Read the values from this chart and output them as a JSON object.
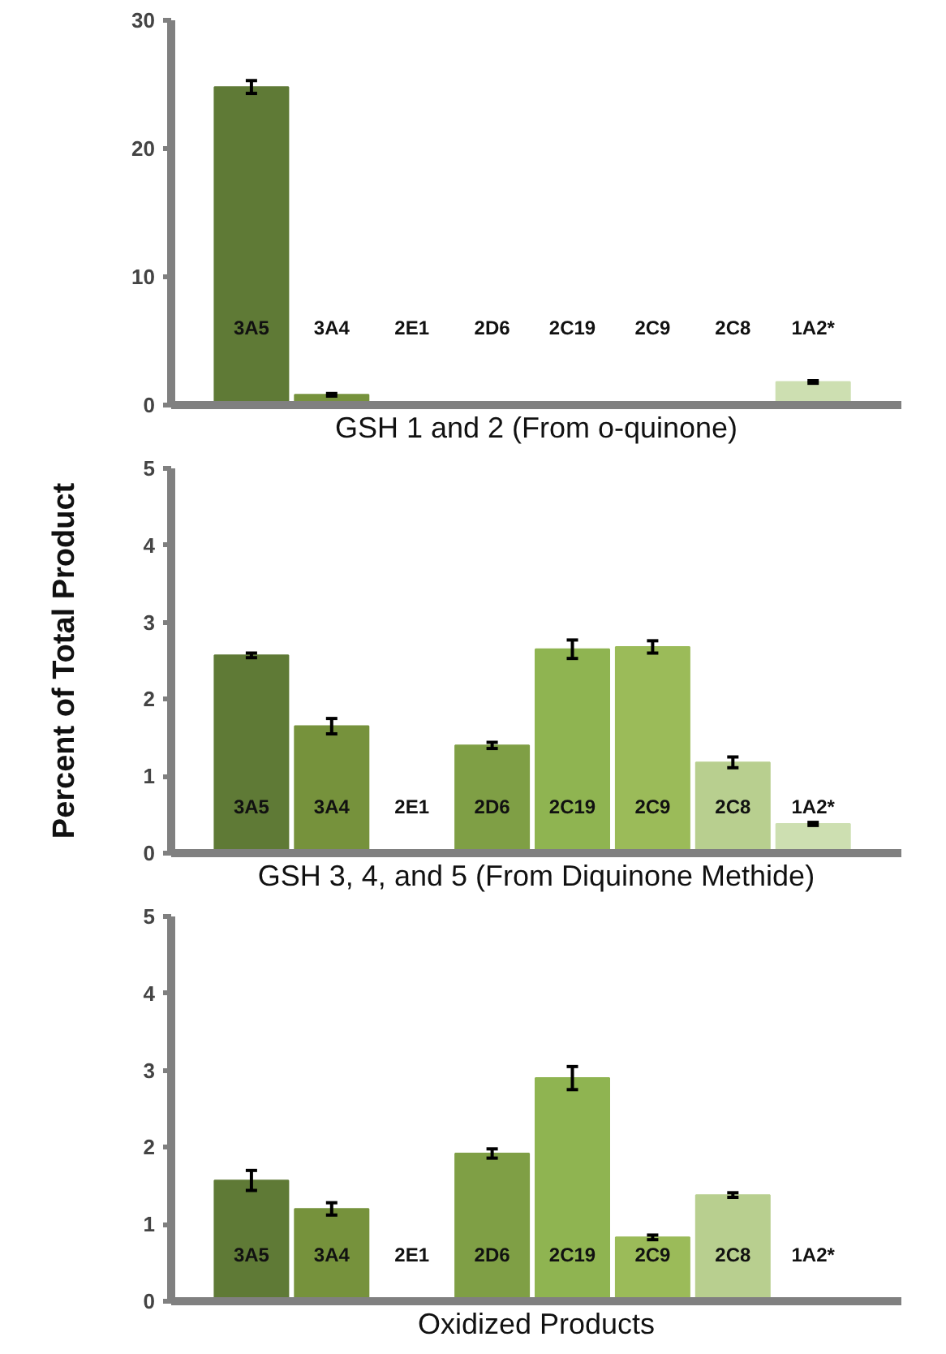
{
  "chart_data": [
    {
      "type": "bar",
      "xlabel": "GSH 1 and 2 (From o-quinone)",
      "categories": [
        "3A5",
        "3A4",
        "2E1",
        "2D6",
        "2C19",
        "2C9",
        "2C8",
        "1A2*"
      ],
      "values": [
        24.8,
        0.8,
        0,
        0.1,
        0,
        0,
        0,
        1.8
      ],
      "errors": [
        0.5,
        0.1,
        null,
        null,
        null,
        null,
        null,
        0.1
      ],
      "colors": [
        "#5f7a36",
        "#76923c",
        "#7a9a40",
        "#7f9f45",
        "#8fb451",
        "#9bbb59",
        "#b8cf8f",
        "#cddfb1"
      ],
      "ylim": [
        0,
        30
      ],
      "yticks": [
        0,
        10,
        20,
        30
      ],
      "grid": false
    },
    {
      "type": "bar",
      "xlabel": "GSH 3, 4, and 5 (From Diquinone Methide)",
      "ylabel": "Percent of Total Product",
      "categories": [
        "3A5",
        "3A4",
        "2E1",
        "2D6",
        "2C19",
        "2C9",
        "2C8",
        "1A2*"
      ],
      "values": [
        2.57,
        1.65,
        0,
        1.4,
        2.65,
        2.68,
        1.18,
        0.38
      ],
      "errors": [
        0.03,
        0.1,
        null,
        0.04,
        0.12,
        0.08,
        0.07,
        0.02
      ],
      "colors": [
        "#5f7a36",
        "#76923c",
        "#7a9a40",
        "#7f9f45",
        "#8fb451",
        "#9bbb59",
        "#b8cf8f",
        "#cddfb1"
      ],
      "ylim": [
        0,
        5
      ],
      "yticks": [
        0,
        1,
        2,
        3,
        4,
        5
      ],
      "grid": false
    },
    {
      "type": "bar",
      "xlabel": "Oxidized Products",
      "categories": [
        "3A5",
        "3A4",
        "2E1",
        "2D6",
        "2C19",
        "2C9",
        "2C8",
        "1A2*"
      ],
      "values": [
        1.57,
        1.2,
        0,
        1.92,
        2.9,
        0.83,
        1.38,
        0
      ],
      "errors": [
        0.13,
        0.08,
        null,
        0.06,
        0.15,
        0.03,
        0.03,
        null
      ],
      "colors": [
        "#5f7a36",
        "#76923c",
        "#7a9a40",
        "#7f9f45",
        "#8fb451",
        "#9bbb59",
        "#b8cf8f",
        "#cddfb1"
      ],
      "ylim": [
        0,
        5
      ],
      "yticks": [
        0,
        1,
        2,
        3,
        4,
        5
      ],
      "grid": false
    }
  ]
}
